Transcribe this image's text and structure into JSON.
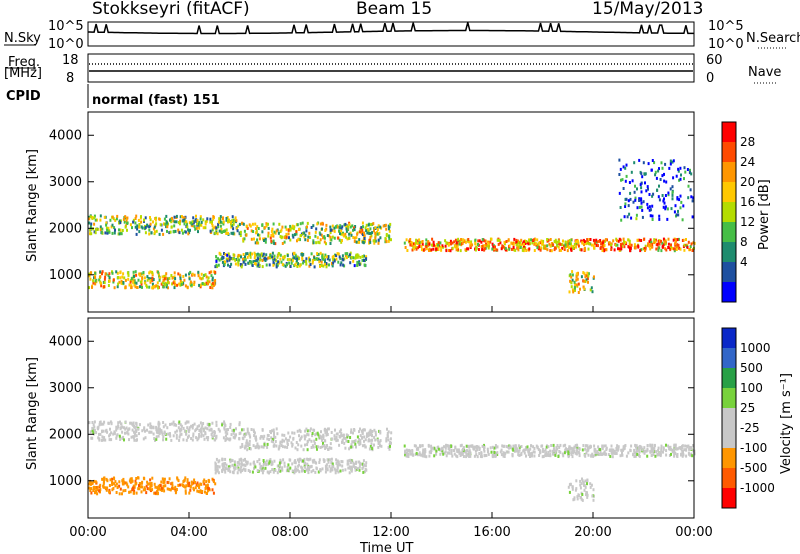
{
  "header": {
    "station": "Stokkseyri (fitACF)",
    "beam": "Beam 15",
    "date": "15/May/2013"
  },
  "top_panel": {
    "nsky_label": "N.Sky",
    "nsky_ticks": [
      "10^5",
      "10^0"
    ],
    "nsearch_label": "N.Search",
    "nsearch_ticks": [
      "10^5",
      "10^0"
    ],
    "freq_label": "Freq.",
    "freq_unit": "[MHz]",
    "freq_ticks": [
      "18",
      "8"
    ],
    "nave_label": "Nave",
    "nave_ticks": [
      "60",
      "0"
    ],
    "cpid_label": "CPID",
    "cpid_value": "normal (fast) 151"
  },
  "chart_data": [
    {
      "type": "heatmap",
      "name": "power",
      "title": "",
      "ylabel": "Slant Range [km]",
      "xlabel": "",
      "ylim": [
        200,
        4500
      ],
      "y_ticks": [
        "4000",
        "3000",
        "2000",
        "1000"
      ],
      "colorbar_label": "Power [dB]",
      "colorbar_ticks": [
        "28",
        "24",
        "20",
        "16",
        "12",
        "8",
        "4"
      ],
      "colors": [
        "#ff0000",
        "#ff4a00",
        "#ff9600",
        "#ffc800",
        "#b4dc00",
        "#46be46",
        "#1e8c6e",
        "#1e50a0",
        "#0000ff"
      ],
      "regions": [
        {
          "t": [
            0.0,
            6.0
          ],
          "r": [
            1900,
            2300
          ],
          "level": 0.45
        },
        {
          "t": [
            6.0,
            12.0
          ],
          "r": [
            1700,
            2150
          ],
          "level": 0.5
        },
        {
          "t": [
            12.5,
            24.0
          ],
          "r": [
            1550,
            1800
          ],
          "level": 0.7
        },
        {
          "t": [
            0.0,
            5.0
          ],
          "r": [
            750,
            1100
          ],
          "level": 0.55
        },
        {
          "t": [
            5.0,
            11.0
          ],
          "r": [
            1200,
            1500
          ],
          "level": 0.4
        },
        {
          "t": [
            19.0,
            20.0
          ],
          "r": [
            600,
            1100
          ],
          "level": 0.55
        },
        {
          "t": [
            21.0,
            24.0
          ],
          "r": [
            2200,
            3500
          ],
          "level": 0.15
        }
      ]
    },
    {
      "type": "heatmap",
      "name": "velocity",
      "title": "",
      "ylabel": "Slant Range [km]",
      "xlabel": "Time UT",
      "x_ticks": [
        "00:00",
        "04:00",
        "08:00",
        "12:00",
        "16:00",
        "20:00",
        "00:00"
      ],
      "ylim": [
        200,
        4500
      ],
      "y_ticks": [
        "4000",
        "3000",
        "2000",
        "1000"
      ],
      "colorbar_label": "Velocity [m s⁻¹]",
      "colorbar_ticks": [
        "1000",
        "500",
        "100",
        "25",
        "-25",
        "-100",
        "-500",
        "-1000"
      ],
      "colors": [
        "#0a28c8",
        "#3266c8",
        "#28a046",
        "#78d23c",
        "#c8c8c8",
        "#c8c8c8",
        "#ff9600",
        "#ff5a00",
        "#ff0000"
      ],
      "regions": [
        {
          "t": [
            0.0,
            6.0
          ],
          "r": [
            1900,
            2300
          ],
          "level": "gray"
        },
        {
          "t": [
            6.0,
            12.0
          ],
          "r": [
            1700,
            2150
          ],
          "level": "gray"
        },
        {
          "t": [
            12.5,
            24.0
          ],
          "r": [
            1550,
            1800
          ],
          "level": "gray"
        },
        {
          "t": [
            0.0,
            5.0
          ],
          "r": [
            750,
            1100
          ],
          "level": "orange"
        },
        {
          "t": [
            5.0,
            11.0
          ],
          "r": [
            1200,
            1500
          ],
          "level": "gray"
        },
        {
          "t": [
            19.0,
            20.0
          ],
          "r": [
            600,
            1100
          ],
          "level": "gray"
        }
      ]
    }
  ]
}
